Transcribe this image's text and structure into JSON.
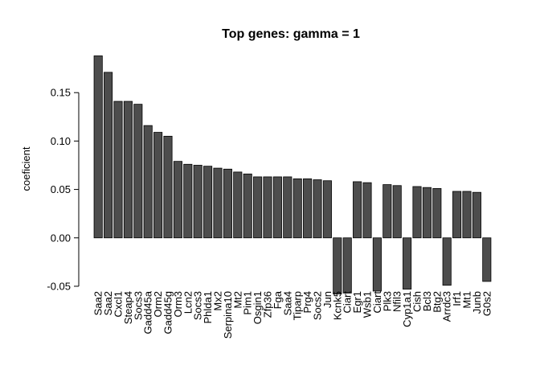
{
  "chart_data": {
    "type": "bar",
    "title": "Top genes: gamma =  1",
    "xlabel": "",
    "ylabel": "coeficient",
    "ylim": [
      -0.06,
      0.2
    ],
    "yticks": [
      "-0.05",
      "0.00",
      "0.05",
      "0.10",
      "0.15"
    ],
    "ytick_values": [
      -0.05,
      0.0,
      0.05,
      0.1,
      0.15
    ],
    "bar_color": "#4d4d4d",
    "grid": false,
    "categories": [
      "Saa2",
      "Saa2",
      "Cxcl1",
      "Steap4",
      "Socs3",
      "Gadd45a",
      "Orm2",
      "Gadd45g",
      "Orm3",
      "Lcn2",
      "Socs3",
      "Phlda1",
      "Mx2",
      "Serpina10",
      "Mt2",
      "Pim1",
      "Osgin1",
      "Zfp36",
      "Fga",
      "Saa4",
      "Tiparp",
      "Prg4",
      "Socs2",
      "Jun",
      "Kcnk5",
      "Ciart",
      "Egr1",
      "Wsb1",
      "Ciart",
      "Plk3",
      "Nfil3",
      "Cyp1a1",
      "Cish",
      "Bcl3",
      "Btg2",
      "Arrdc3",
      "Irf1",
      "Mt1",
      "Junb",
      "G0s2"
    ],
    "values": [
      0.188,
      0.171,
      0.141,
      0.141,
      0.138,
      0.116,
      0.109,
      0.105,
      0.079,
      0.076,
      0.075,
      0.074,
      0.072,
      0.071,
      0.068,
      0.066,
      0.063,
      0.063,
      0.063,
      0.063,
      0.061,
      0.061,
      0.06,
      0.059,
      -0.058,
      -0.057,
      0.058,
      0.057,
      -0.055,
      0.055,
      0.054,
      -0.053,
      0.053,
      0.052,
      0.051,
      -0.049,
      0.048,
      0.048,
      0.047,
      -0.045
    ]
  }
}
